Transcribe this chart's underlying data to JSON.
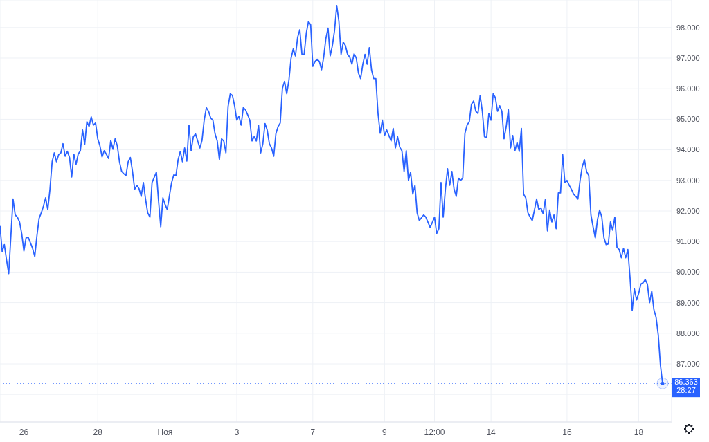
{
  "chart_data": {
    "type": "line",
    "color": "#2962ff",
    "marker": "none",
    "grid": true,
    "categories": [
      null,
      null,
      null,
      null,
      null,
      null,
      null,
      null,
      null,
      null,
      null,
      "26",
      null,
      null,
      null,
      null,
      null,
      null,
      null,
      null,
      null,
      null,
      null,
      null,
      null,
      null,
      null,
      null,
      null,
      null,
      null,
      null,
      null,
      null,
      null,
      null,
      null,
      null,
      null,
      null,
      null,
      null,
      null,
      null,
      null,
      "28",
      null,
      null,
      null,
      null,
      null,
      null,
      null,
      null,
      null,
      null,
      null,
      null,
      null,
      null,
      null,
      null,
      null,
      null,
      null,
      null,
      null,
      null,
      null,
      null,
      null,
      null,
      null,
      null,
      null,
      null,
      "Ноя",
      null,
      null,
      null,
      null,
      null,
      null,
      null,
      null,
      null,
      null,
      null,
      null,
      null,
      null,
      null,
      null,
      null,
      null,
      null,
      null,
      null,
      null,
      null,
      null,
      null,
      null,
      null,
      null,
      null,
      null,
      null,
      null,
      "3",
      null,
      null,
      null,
      null,
      null,
      null,
      null,
      null,
      null,
      null,
      null,
      null,
      null,
      null,
      null,
      null,
      null,
      null,
      null,
      null,
      null,
      null,
      null,
      null,
      null,
      null,
      null,
      null,
      null,
      null,
      null,
      null,
      null,
      null,
      "7",
      null,
      null,
      null,
      null,
      null,
      null,
      null,
      null,
      null,
      null,
      null,
      null,
      null,
      null,
      null,
      null,
      null,
      null,
      null,
      null,
      null,
      null,
      null,
      null,
      null,
      null,
      null,
      null,
      null,
      null,
      null,
      null,
      "9",
      null,
      null,
      null,
      null,
      null,
      null,
      null,
      null,
      null,
      null,
      null,
      null,
      null,
      null,
      null,
      null,
      null,
      null,
      null,
      null,
      null,
      null,
      "12:00",
      null,
      null,
      null,
      null,
      null,
      null,
      null,
      null,
      null,
      null,
      null,
      null,
      null,
      null,
      null,
      null,
      null,
      null,
      null,
      null,
      null,
      null,
      null,
      null,
      null,
      "14",
      null,
      null,
      null,
      null,
      null,
      null,
      null,
      null,
      null,
      null,
      null,
      null,
      null,
      null,
      null,
      null,
      null,
      null,
      null,
      null,
      null,
      null,
      null,
      null,
      null,
      null,
      null,
      null,
      null,
      null,
      null,
      null,
      null,
      null,
      "16",
      null,
      null,
      null,
      null,
      null,
      null,
      null,
      null,
      null,
      null,
      null,
      null,
      null,
      null,
      null,
      null,
      null,
      null,
      null,
      null,
      null,
      null,
      null,
      null,
      null,
      null,
      null,
      null,
      null,
      null,
      null,
      null,
      "18",
      null,
      null,
      null,
      null,
      null,
      null,
      null,
      null,
      null,
      null,
      null
    ],
    "ylim": [
      85.1,
      98.9
    ],
    "yticks": [
      {
        "value": 86,
        "label": null
      },
      {
        "value": 87,
        "label": "87.000"
      },
      {
        "value": 88,
        "label": "88.000"
      },
      {
        "value": 89,
        "label": "89.000"
      },
      {
        "value": 90,
        "label": "90.000"
      },
      {
        "value": 91,
        "label": "91.000"
      },
      {
        "value": 92,
        "label": "92.000"
      },
      {
        "value": 93,
        "label": "93.000"
      },
      {
        "value": 94,
        "label": "94.000"
      },
      {
        "value": 95,
        "label": "95.000"
      },
      {
        "value": 96,
        "label": "96.000"
      },
      {
        "value": 97,
        "label": "97.000"
      },
      {
        "value": 98,
        "label": "98.000"
      }
    ],
    "ref_lines": [
      {
        "axis": "y",
        "value": 86.363,
        "label": "86.363",
        "color": "#2962ff",
        "line_style": "dotted"
      }
    ],
    "annotations": [
      "28:27"
    ],
    "values": [
      91.51,
      90.67,
      90.9,
      90.4,
      89.95,
      91.17,
      92.39,
      91.87,
      91.8,
      91.64,
      91.26,
      90.69,
      91.12,
      91.14,
      90.96,
      90.78,
      90.51,
      91.19,
      91.76,
      91.94,
      92.16,
      92.43,
      92.05,
      92.71,
      93.61,
      93.9,
      93.61,
      93.84,
      93.9,
      94.2,
      93.79,
      93.95,
      93.75,
      93.11,
      93.86,
      93.52,
      93.86,
      93.97,
      94.65,
      94.18,
      94.92,
      94.76,
      95.08,
      94.81,
      94.88,
      94.36,
      94.13,
      93.77,
      93.97,
      93.85,
      93.72,
      94.31,
      94.02,
      94.36,
      94.13,
      93.61,
      93.29,
      93.22,
      93.16,
      93.61,
      93.75,
      93.29,
      92.71,
      92.84,
      92.73,
      92.48,
      92.93,
      92.39,
      91.94,
      91.8,
      92.93,
      93.1,
      93.27,
      92.32,
      91.48,
      92.43,
      92.21,
      92.05,
      92.5,
      92.93,
      93.18,
      93.16,
      93.68,
      93.95,
      93.61,
      94.06,
      93.63,
      94.81,
      93.97,
      94.43,
      94.52,
      94.29,
      94.06,
      94.31,
      94.97,
      95.38,
      95.26,
      95.04,
      94.97,
      94.52,
      94.29,
      93.68,
      94.36,
      94.29,
      93.9,
      95.42,
      95.83,
      95.78,
      95.44,
      94.97,
      95.1,
      94.81,
      95.38,
      95.31,
      95.15,
      94.97,
      94.29,
      94.43,
      94.29,
      94.81,
      93.9,
      94.2,
      94.86,
      94.65,
      94.2,
      94.06,
      93.79,
      94.52,
      94.76,
      94.88,
      96.01,
      96.24,
      95.83,
      96.28,
      97.0,
      97.3,
      97.07,
      97.68,
      97.93,
      97.12,
      97.12,
      97.82,
      98.2,
      98.09,
      96.73,
      96.89,
      96.96,
      96.89,
      96.62,
      97.03,
      97.64,
      97.98,
      97.07,
      97.41,
      97.91,
      98.72,
      98.2,
      97.12,
      97.52,
      97.41,
      97.12,
      97.03,
      96.8,
      97.14,
      97.0,
      96.51,
      96.33,
      96.8,
      97.12,
      96.8,
      97.34,
      96.62,
      96.33,
      96.33,
      95.19,
      94.54,
      94.97,
      94.47,
      94.65,
      94.47,
      94.29,
      94.7,
      94.06,
      94.43,
      94.09,
      93.97,
      93.29,
      93.97,
      93.0,
      93.27,
      92.55,
      92.84,
      91.94,
      91.69,
      91.78,
      91.87,
      91.8,
      91.63,
      91.46,
      91.63,
      91.8,
      91.26,
      91.42,
      92.93,
      91.8,
      92.71,
      93.38,
      92.84,
      93.29,
      92.71,
      92.48,
      93.07,
      93.0,
      93.07,
      94.54,
      94.81,
      94.92,
      95.49,
      95.6,
      95.26,
      95.19,
      95.78,
      95.26,
      94.43,
      94.4,
      95.19,
      94.97,
      95.83,
      95.71,
      95.26,
      95.44,
      95.26,
      94.36,
      94.76,
      95.31,
      94.06,
      94.47,
      93.97,
      94.24,
      93.95,
      94.7,
      92.55,
      92.43,
      91.94,
      91.8,
      91.69,
      92.03,
      92.39,
      92.05,
      92.1,
      91.91,
      92.37,
      91.35,
      92.03,
      91.64,
      91.87,
      91.42,
      92.59,
      92.59,
      93.84,
      92.93,
      93.0,
      92.84,
      92.71,
      92.55,
      92.48,
      92.39,
      93.0,
      93.45,
      93.68,
      93.29,
      93.16,
      91.87,
      91.48,
      91.12,
      91.71,
      92.03,
      91.8,
      91.12,
      90.9,
      90.92,
      91.64,
      91.37,
      91.8,
      90.81,
      90.74,
      90.47,
      90.78,
      90.47,
      90.74,
      89.83,
      88.75,
      89.45,
      89.09,
      89.31,
      89.61,
      89.65,
      89.76,
      89.61,
      89.0,
      89.38,
      88.77,
      88.52,
      87.95,
      86.96,
      86.36
    ]
  }
}
